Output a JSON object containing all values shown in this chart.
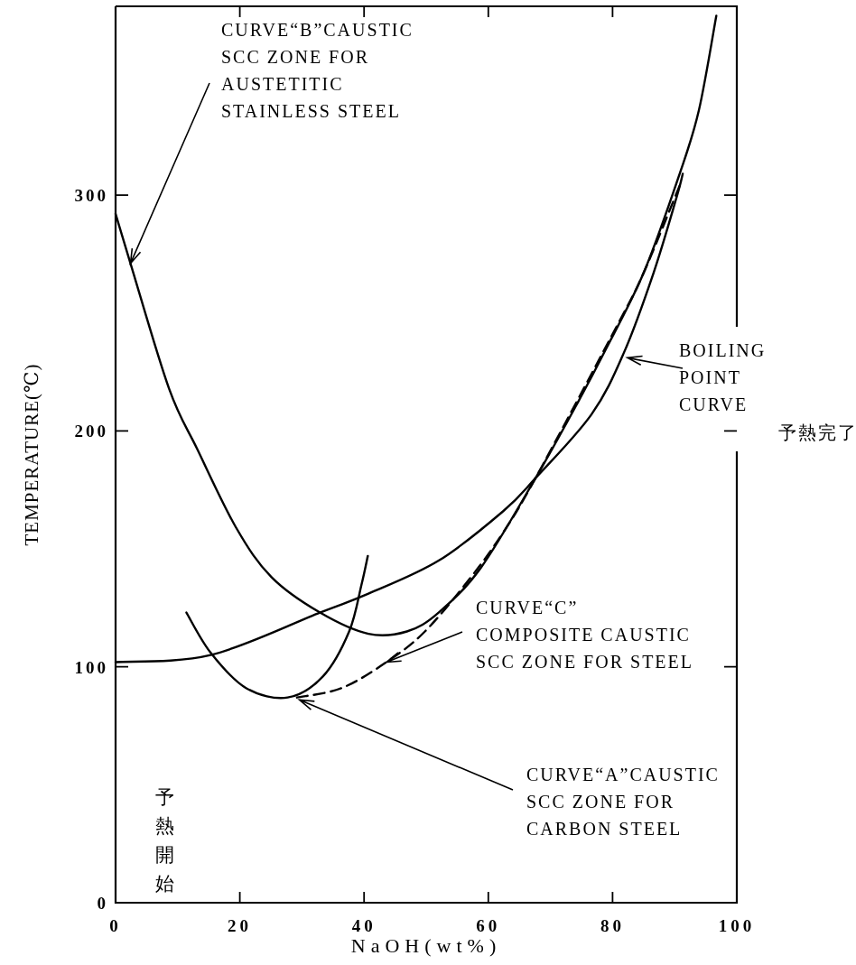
{
  "chart_data": {
    "type": "line",
    "xlabel": "NaOH(wt%)",
    "ylabel": "TEMPERATURE(℃)",
    "xlim": [
      0,
      100
    ],
    "ylim": [
      0,
      380
    ],
    "xticks": [
      0,
      20,
      40,
      60,
      80,
      100
    ],
    "yticks": [
      0,
      100,
      200,
      300
    ],
    "series": [
      {
        "color": "#000000",
        "line_style": "solid",
        "x": [
          0,
          2.4,
          8.6,
          13.2,
          19.4,
          25.1,
          32.9,
          40.7,
          46.9,
          52,
          58.8,
          67.6,
          74.6,
          78.8,
          85,
          90.8,
          93.9,
          96.7
        ],
        "values": [
          292,
          271,
          218,
          192,
          159,
          138,
          123,
          114,
          115,
          123,
          142,
          180,
          213,
          234,
          267,
          309,
          336,
          376
        ]
      },
      {
        "color": "#000000",
        "line_style": "solid",
        "x": [
          0,
          15.3,
          32.9,
          40.7,
          52,
          62.4,
          67.6,
          76.6,
          81.8,
          86.6,
          90.3,
          91.3
        ],
        "values": [
          102,
          105,
          123,
          131,
          145,
          166,
          180,
          207,
          233,
          267,
          299,
          309
        ]
      },
      {
        "color": "#000000",
        "line_style": "solid",
        "x": [
          11.4,
          15.3,
          21,
          27.7,
          33.4,
          37.6,
          39.6,
          40.6
        ],
        "values": [
          123,
          106,
          91,
          87,
          96,
          115,
          135,
          147
        ]
      },
      {
        "color": "#000000",
        "line_style": "dashed",
        "x": [
          29.2,
          36.4,
          43.6,
          49.8,
          57.2,
          62.4,
          67.6,
          80.8,
          85,
          90.8
        ],
        "values": [
          87,
          91,
          102,
          115,
          138,
          157,
          180,
          245,
          267,
          304
        ]
      }
    ],
    "annotations": [
      {
        "text": "CURVE“B”CAUSTIC\nSCC ZONE FOR\nAUSTETITIC\nSTAINLESS STEEL",
        "x": 2.4,
        "y": 271
      },
      {
        "text": "BOILING\nPOINT\nCURVE",
        "x": 82.4,
        "y": 231
      },
      {
        "text": "CURVE“C”\nCOMPOSITE CAUSTIC\nSCC ZONE FOR STEEL",
        "x": 43.6,
        "y": 102
      },
      {
        "text": "CURVE“A”CAUSTIC\nSCC ZONE FOR\nCARBON STEEL",
        "x": 29.6,
        "y": 86
      },
      "予熱完了",
      "予熱開始"
    ]
  }
}
